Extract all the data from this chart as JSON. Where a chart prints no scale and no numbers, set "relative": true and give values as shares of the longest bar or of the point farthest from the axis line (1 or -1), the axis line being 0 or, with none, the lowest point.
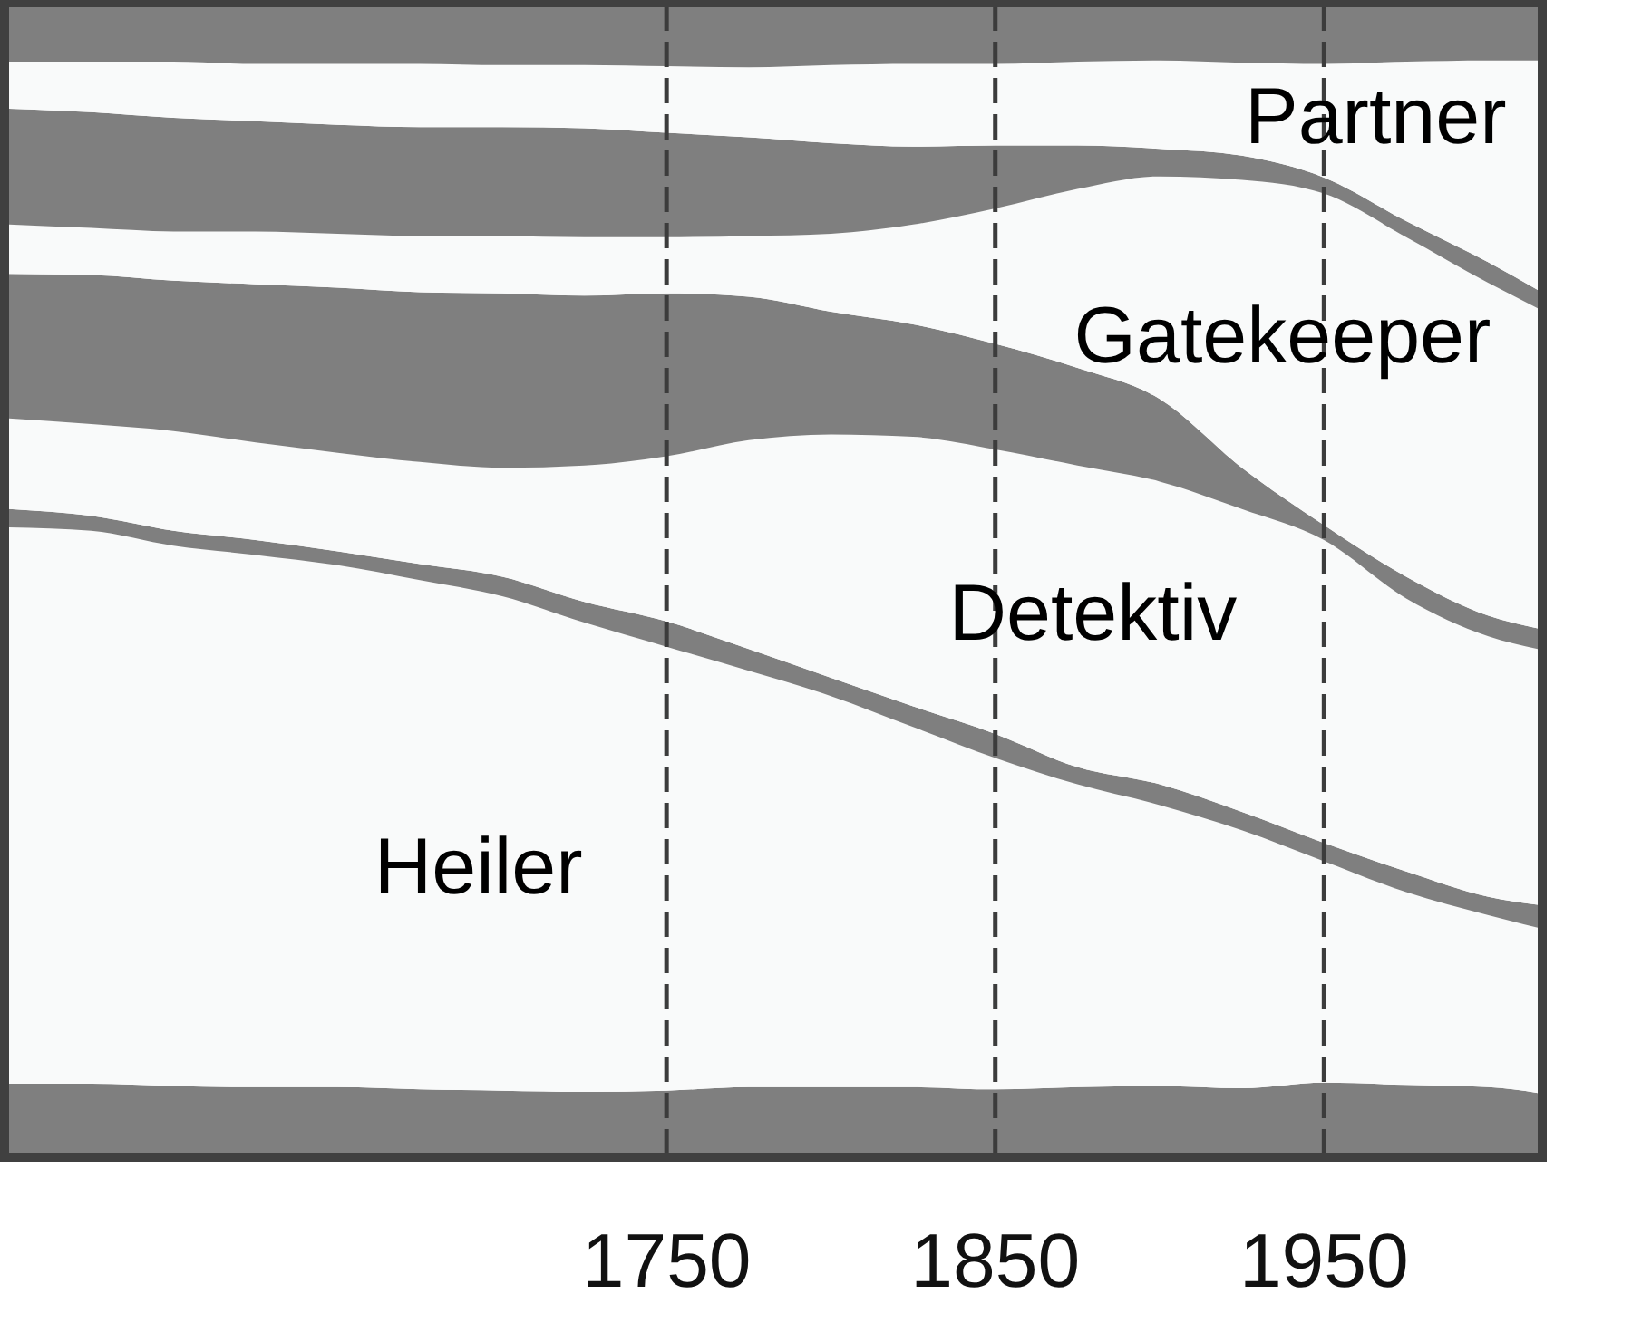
{
  "chart_data": {
    "type": "area",
    "stacked": true,
    "relative": true,
    "grid": "x",
    "x": [
      1550,
      1575,
      1600,
      1625,
      1650,
      1675,
      1700,
      1725,
      1750,
      1775,
      1800,
      1825,
      1850,
      1875,
      1900,
      1925,
      1950,
      1975,
      2000,
      2015
    ],
    "xlim": [
      1550,
      2015
    ],
    "xticks": [
      1750,
      1850,
      1950
    ],
    "series": [
      {
        "color": "#7f7f7f",
        "values": [
          0.06,
          0.06,
          0.058,
          0.057,
          0.057,
          0.055,
          0.054,
          0.053,
          0.054,
          0.057,
          0.057,
          0.057,
          0.055,
          0.057,
          0.058,
          0.056,
          0.061,
          0.059,
          0.057,
          0.052
        ]
      },
      {
        "name": "Heiler",
        "color": "#f9fafa",
        "values": [
          0.485,
          0.482,
          0.471,
          0.464,
          0.455,
          0.444,
          0.431,
          0.409,
          0.387,
          0.363,
          0.341,
          0.314,
          0.289,
          0.264,
          0.245,
          0.225,
          0.193,
          0.168,
          0.15,
          0.144
        ]
      },
      {
        "color": "#7f7f7f",
        "values": [
          0.016,
          0.013,
          0.013,
          0.013,
          0.012,
          0.014,
          0.017,
          0.018,
          0.022,
          0.019,
          0.016,
          0.018,
          0.021,
          0.015,
          0.018,
          0.016,
          0.016,
          0.018,
          0.016,
          0.02
        ]
      },
      {
        "name": "Detektiv",
        "color": "#f9fafa",
        "values": [
          0.079,
          0.08,
          0.087,
          0.085,
          0.086,
          0.089,
          0.095,
          0.119,
          0.144,
          0.182,
          0.212,
          0.235,
          0.248,
          0.263,
          0.264,
          0.264,
          0.264,
          0.238,
          0.227,
          0.223
        ]
      },
      {
        "color": "#7f7f7f",
        "values": [
          0.126,
          0.13,
          0.131,
          0.138,
          0.144,
          0.148,
          0.152,
          0.148,
          0.142,
          0.125,
          0.107,
          0.098,
          0.092,
          0.085,
          0.072,
          0.036,
          0.013,
          0.019,
          0.018,
          0.018
        ]
      },
      {
        "name": "Gatekeeper",
        "color": "#f9fafa",
        "values": [
          0.043,
          0.041,
          0.043,
          0.046,
          0.047,
          0.049,
          0.05,
          0.051,
          0.049,
          0.053,
          0.068,
          0.087,
          0.118,
          0.156,
          0.194,
          0.251,
          0.289,
          0.296,
          0.29,
          0.279
        ]
      },
      {
        "color": "#7f7f7f",
        "values": [
          0.101,
          0.101,
          0.099,
          0.096,
          0.095,
          0.095,
          0.095,
          0.095,
          0.091,
          0.086,
          0.079,
          0.068,
          0.055,
          0.038,
          0.024,
          0.021,
          0.014,
          0.014,
          0.018,
          0.016
        ]
      },
      {
        "name": "Partner",
        "color": "#f9fafa",
        "values": [
          0.041,
          0.044,
          0.049,
          0.05,
          0.053,
          0.055,
          0.054,
          0.055,
          0.058,
          0.061,
          0.068,
          0.072,
          0.071,
          0.073,
          0.077,
          0.081,
          0.099,
          0.139,
          0.176,
          0.2
        ]
      },
      {
        "color": "#7f7f7f",
        "values": [
          0.049,
          0.049,
          0.049,
          0.051,
          0.051,
          0.051,
          0.052,
          0.052,
          0.053,
          0.054,
          0.052,
          0.051,
          0.051,
          0.049,
          0.048,
          0.05,
          0.051,
          0.049,
          0.048,
          0.048
        ]
      }
    ]
  }
}
